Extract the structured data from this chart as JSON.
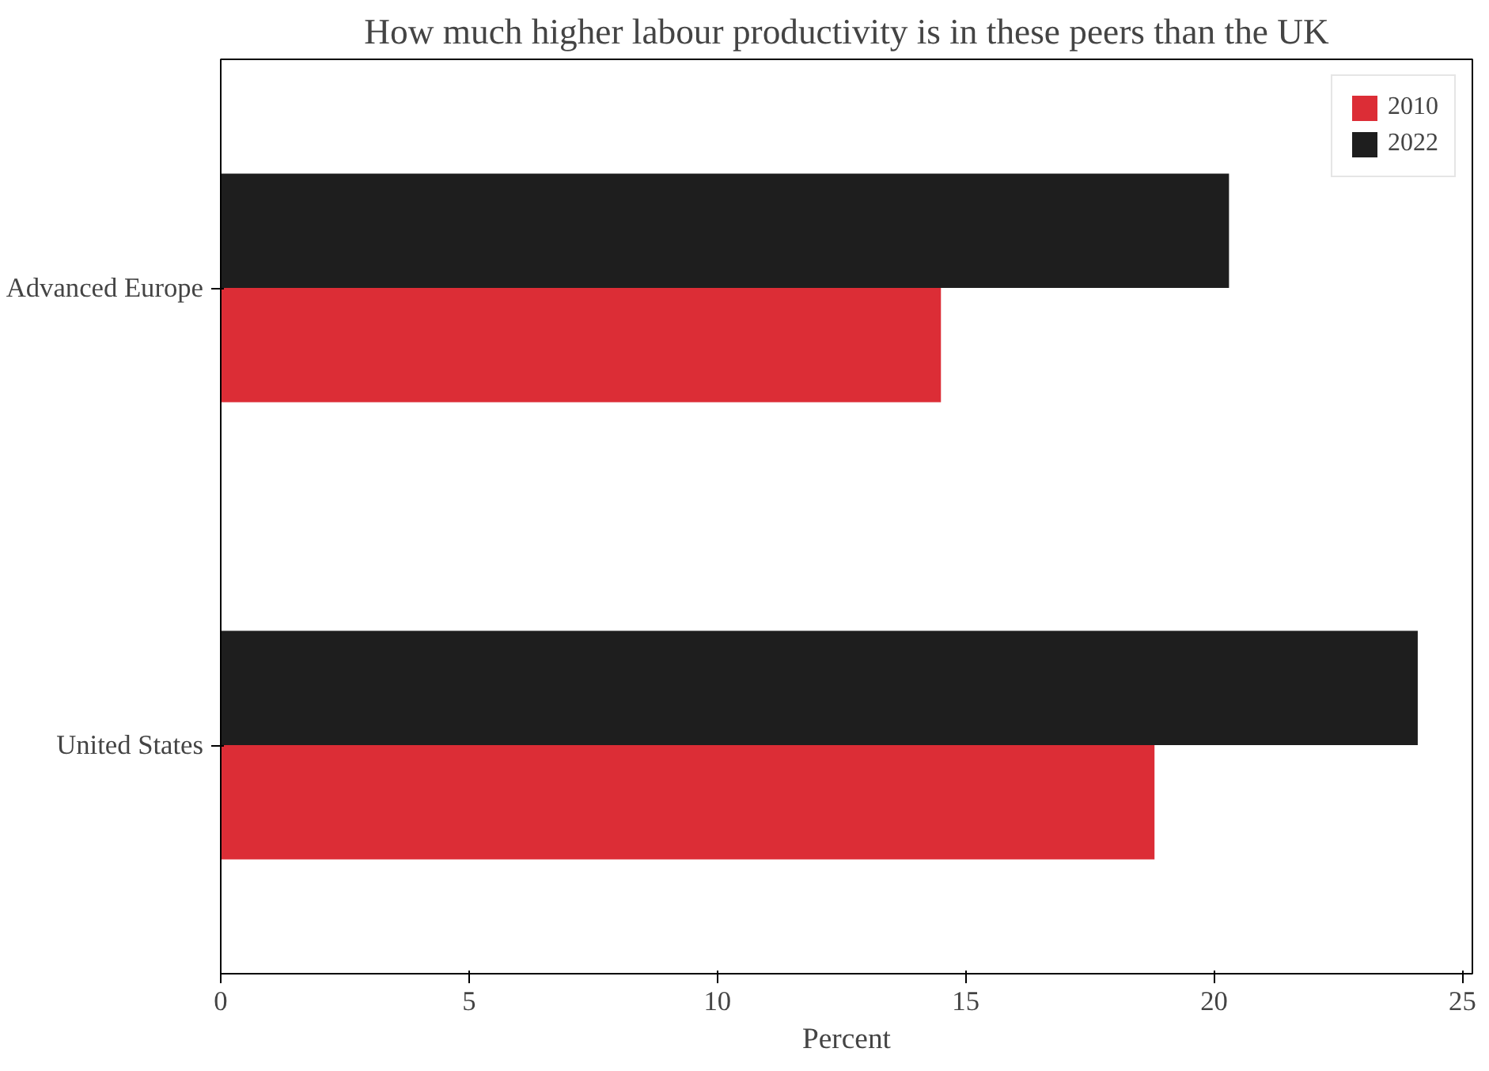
{
  "chart_data": {
    "type": "bar",
    "orientation": "horizontal",
    "title": "How much higher labour productivity is in these peers than the UK",
    "xlabel": "Percent",
    "categories": [
      "Advanced Europe",
      "United States"
    ],
    "series": [
      {
        "name": "2010",
        "color": "#dc2d36",
        "values": [
          14.5,
          18.8
        ]
      },
      {
        "name": "2022",
        "color": "#1e1e1e",
        "values": [
          20.3,
          24.1
        ]
      }
    ],
    "xlim": [
      0,
      25.2
    ],
    "xticks": [
      0,
      5,
      10,
      15,
      20,
      25
    ],
    "grid": false,
    "legend": "top right"
  }
}
